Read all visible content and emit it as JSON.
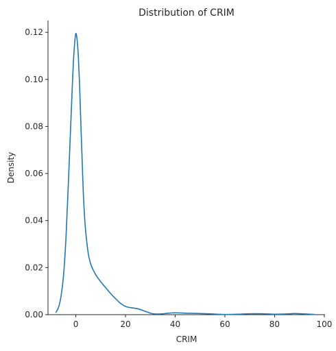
{
  "chart_data": {
    "type": "line",
    "title": "Distribution of CRIM",
    "xlabel": "CRIM",
    "ylabel": "Density",
    "xlim": [
      -11.2,
      100.3
    ],
    "ylim": [
      0.0,
      0.125
    ],
    "xticks": [
      0,
      20,
      40,
      60,
      80,
      100
    ],
    "yticks": [
      0.0,
      0.02,
      0.04,
      0.06,
      0.08,
      0.1,
      0.12
    ],
    "xtick_labels": [
      "0",
      "20",
      "40",
      "60",
      "80",
      "100"
    ],
    "ytick_labels": [
      "0.00",
      "0.02",
      "0.04",
      "0.06",
      "0.08",
      "0.10",
      "0.12"
    ],
    "grid": false,
    "line_color": "#1f77b4",
    "series": [
      {
        "x": [
          -8.0,
          -7.0,
          -6.0,
          -5.0,
          -4.0,
          -3.0,
          -2.0,
          -1.5,
          -1.0,
          -0.5,
          0.0,
          0.5,
          1.0,
          1.5,
          2.0,
          2.5,
          3.0,
          3.5,
          4.0,
          5.0,
          6.0,
          7.0,
          8.0,
          10.0,
          12.0,
          14.0,
          16.0,
          18.0,
          20.0,
          22.0,
          25.0,
          28.0,
          31.0,
          34.0,
          37.0,
          40.0,
          45.0,
          50.0,
          55.0,
          60.0,
          65.0,
          70.0,
          75.0,
          80.0,
          85.0,
          88.0,
          92.0,
          96.0
        ],
        "y": [
          0.001,
          0.003,
          0.0075,
          0.016,
          0.032,
          0.056,
          0.082,
          0.095,
          0.107,
          0.115,
          0.1195,
          0.117,
          0.11,
          0.098,
          0.082,
          0.067,
          0.052,
          0.042,
          0.035,
          0.026,
          0.0215,
          0.019,
          0.017,
          0.014,
          0.0115,
          0.009,
          0.0068,
          0.0048,
          0.0035,
          0.003,
          0.0025,
          0.0014,
          0.0004,
          0.0003,
          0.0006,
          0.0008,
          0.0006,
          0.0005,
          0.0003,
          0.0001,
          0.0002,
          0.0004,
          0.0004,
          0.0002,
          0.0003,
          0.0005,
          0.0003,
          0.0001
        ]
      }
    ]
  }
}
